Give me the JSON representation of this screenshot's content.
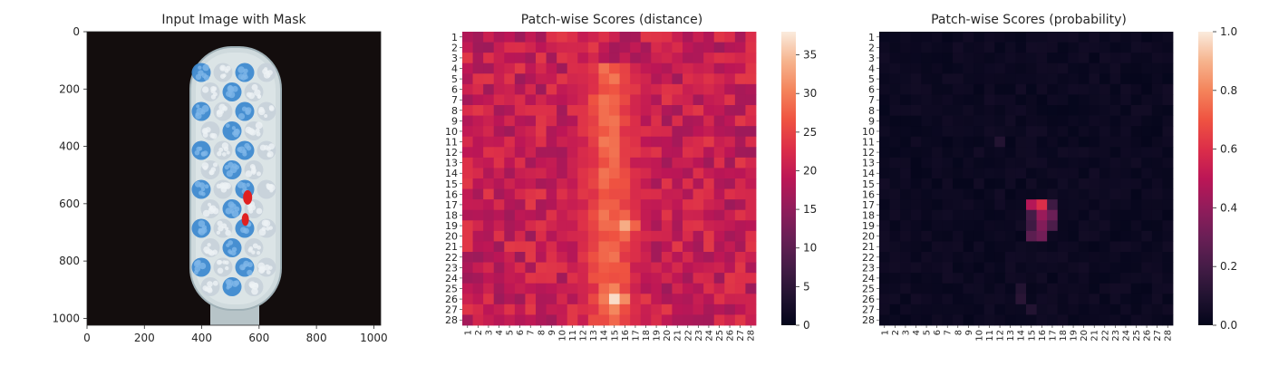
{
  "colors": {
    "background": "#ffffff",
    "brush_base": "#cfdadd",
    "bristle_blue": "#3f8ad0",
    "bristle_white": "#c8d2da",
    "mask_red": "#e02020",
    "image_bg": "#130d0d"
  },
  "chart_data": [
    {
      "type": "image",
      "title": "Input Image with Mask",
      "xlabel": "",
      "ylabel": "",
      "xlim": [
        0,
        1024
      ],
      "ylim": [
        1024,
        0
      ],
      "xticks": [
        0,
        200,
        400,
        600,
        800,
        1000
      ],
      "yticks": [
        0,
        200,
        400,
        600,
        800,
        1000
      ],
      "content": "toothbrush-head",
      "mask_regions": [
        {
          "x": 560,
          "y": 578
        },
        {
          "x": 552,
          "y": 655
        }
      ]
    },
    {
      "type": "heatmap",
      "title": "Patch-wise Scores (distance)",
      "xlabel": "",
      "ylabel": "",
      "rows": 28,
      "cols": 28,
      "x_categories": [
        "1",
        "2",
        "3",
        "4",
        "5",
        "6",
        "7",
        "8",
        "9",
        "10",
        "11",
        "12",
        "13",
        "14",
        "15",
        "16",
        "17",
        "18",
        "19",
        "20",
        "21",
        "22",
        "23",
        "24",
        "25",
        "26",
        "27",
        "28"
      ],
      "y_categories": [
        "1",
        "2",
        "3",
        "4",
        "5",
        "6",
        "7",
        "8",
        "9",
        "10",
        "11",
        "12",
        "13",
        "14",
        "15",
        "16",
        "17",
        "18",
        "19",
        "20",
        "21",
        "22",
        "23",
        "24",
        "25",
        "26",
        "27",
        "28"
      ],
      "vmin": 0,
      "vmax": 38,
      "colormap": "rocket",
      "colorbar_ticks": [
        0,
        5,
        10,
        15,
        20,
        25,
        30,
        35
      ],
      "background_level": 20,
      "central_band": {
        "rows": [
          4,
          28
        ],
        "cols": [
          10,
          19
        ],
        "level": 29
      },
      "hot_spots": [
        {
          "row": 19,
          "col": 16,
          "value": 35
        },
        {
          "row": 26,
          "col": 15,
          "value": 38
        }
      ]
    },
    {
      "type": "heatmap",
      "title": "Patch-wise Scores (probability)",
      "xlabel": "",
      "ylabel": "",
      "rows": 28,
      "cols": 28,
      "x_categories": [
        "1",
        "2",
        "3",
        "4",
        "5",
        "6",
        "7",
        "8",
        "9",
        "10",
        "11",
        "12",
        "13",
        "14",
        "15",
        "16",
        "17",
        "18",
        "19",
        "20",
        "21",
        "22",
        "23",
        "24",
        "25",
        "26",
        "27",
        "28"
      ],
      "y_categories": [
        "1",
        "2",
        "3",
        "4",
        "5",
        "6",
        "7",
        "8",
        "9",
        "10",
        "11",
        "12",
        "13",
        "14",
        "15",
        "16",
        "17",
        "18",
        "19",
        "20",
        "21",
        "22",
        "23",
        "24",
        "25",
        "26",
        "27",
        "28"
      ],
      "vmin": 0.0,
      "vmax": 1.0,
      "colormap": "rocket",
      "colorbar_ticks": [
        "0.0",
        "0.2",
        "0.4",
        "0.6",
        "0.8",
        "1.0"
      ],
      "background_level": 0.03,
      "hot_spots": [
        {
          "row": 17,
          "col": 16,
          "value": 0.6
        },
        {
          "row": 17,
          "col": 15,
          "value": 0.48
        },
        {
          "row": 18,
          "col": 16,
          "value": 0.42
        },
        {
          "row": 19,
          "col": 16,
          "value": 0.36
        },
        {
          "row": 20,
          "col": 16,
          "value": 0.32
        },
        {
          "row": 18,
          "col": 17,
          "value": 0.3
        },
        {
          "row": 20,
          "col": 15,
          "value": 0.26
        },
        {
          "row": 19,
          "col": 17,
          "value": 0.22
        },
        {
          "row": 18,
          "col": 15,
          "value": 0.2
        },
        {
          "row": 19,
          "col": 15,
          "value": 0.18
        },
        {
          "row": 17,
          "col": 17,
          "value": 0.18
        },
        {
          "row": 26,
          "col": 14,
          "value": 0.12
        },
        {
          "row": 25,
          "col": 14,
          "value": 0.1
        },
        {
          "row": 27,
          "col": 15,
          "value": 0.1
        },
        {
          "row": 11,
          "col": 12,
          "value": 0.1
        }
      ]
    }
  ]
}
